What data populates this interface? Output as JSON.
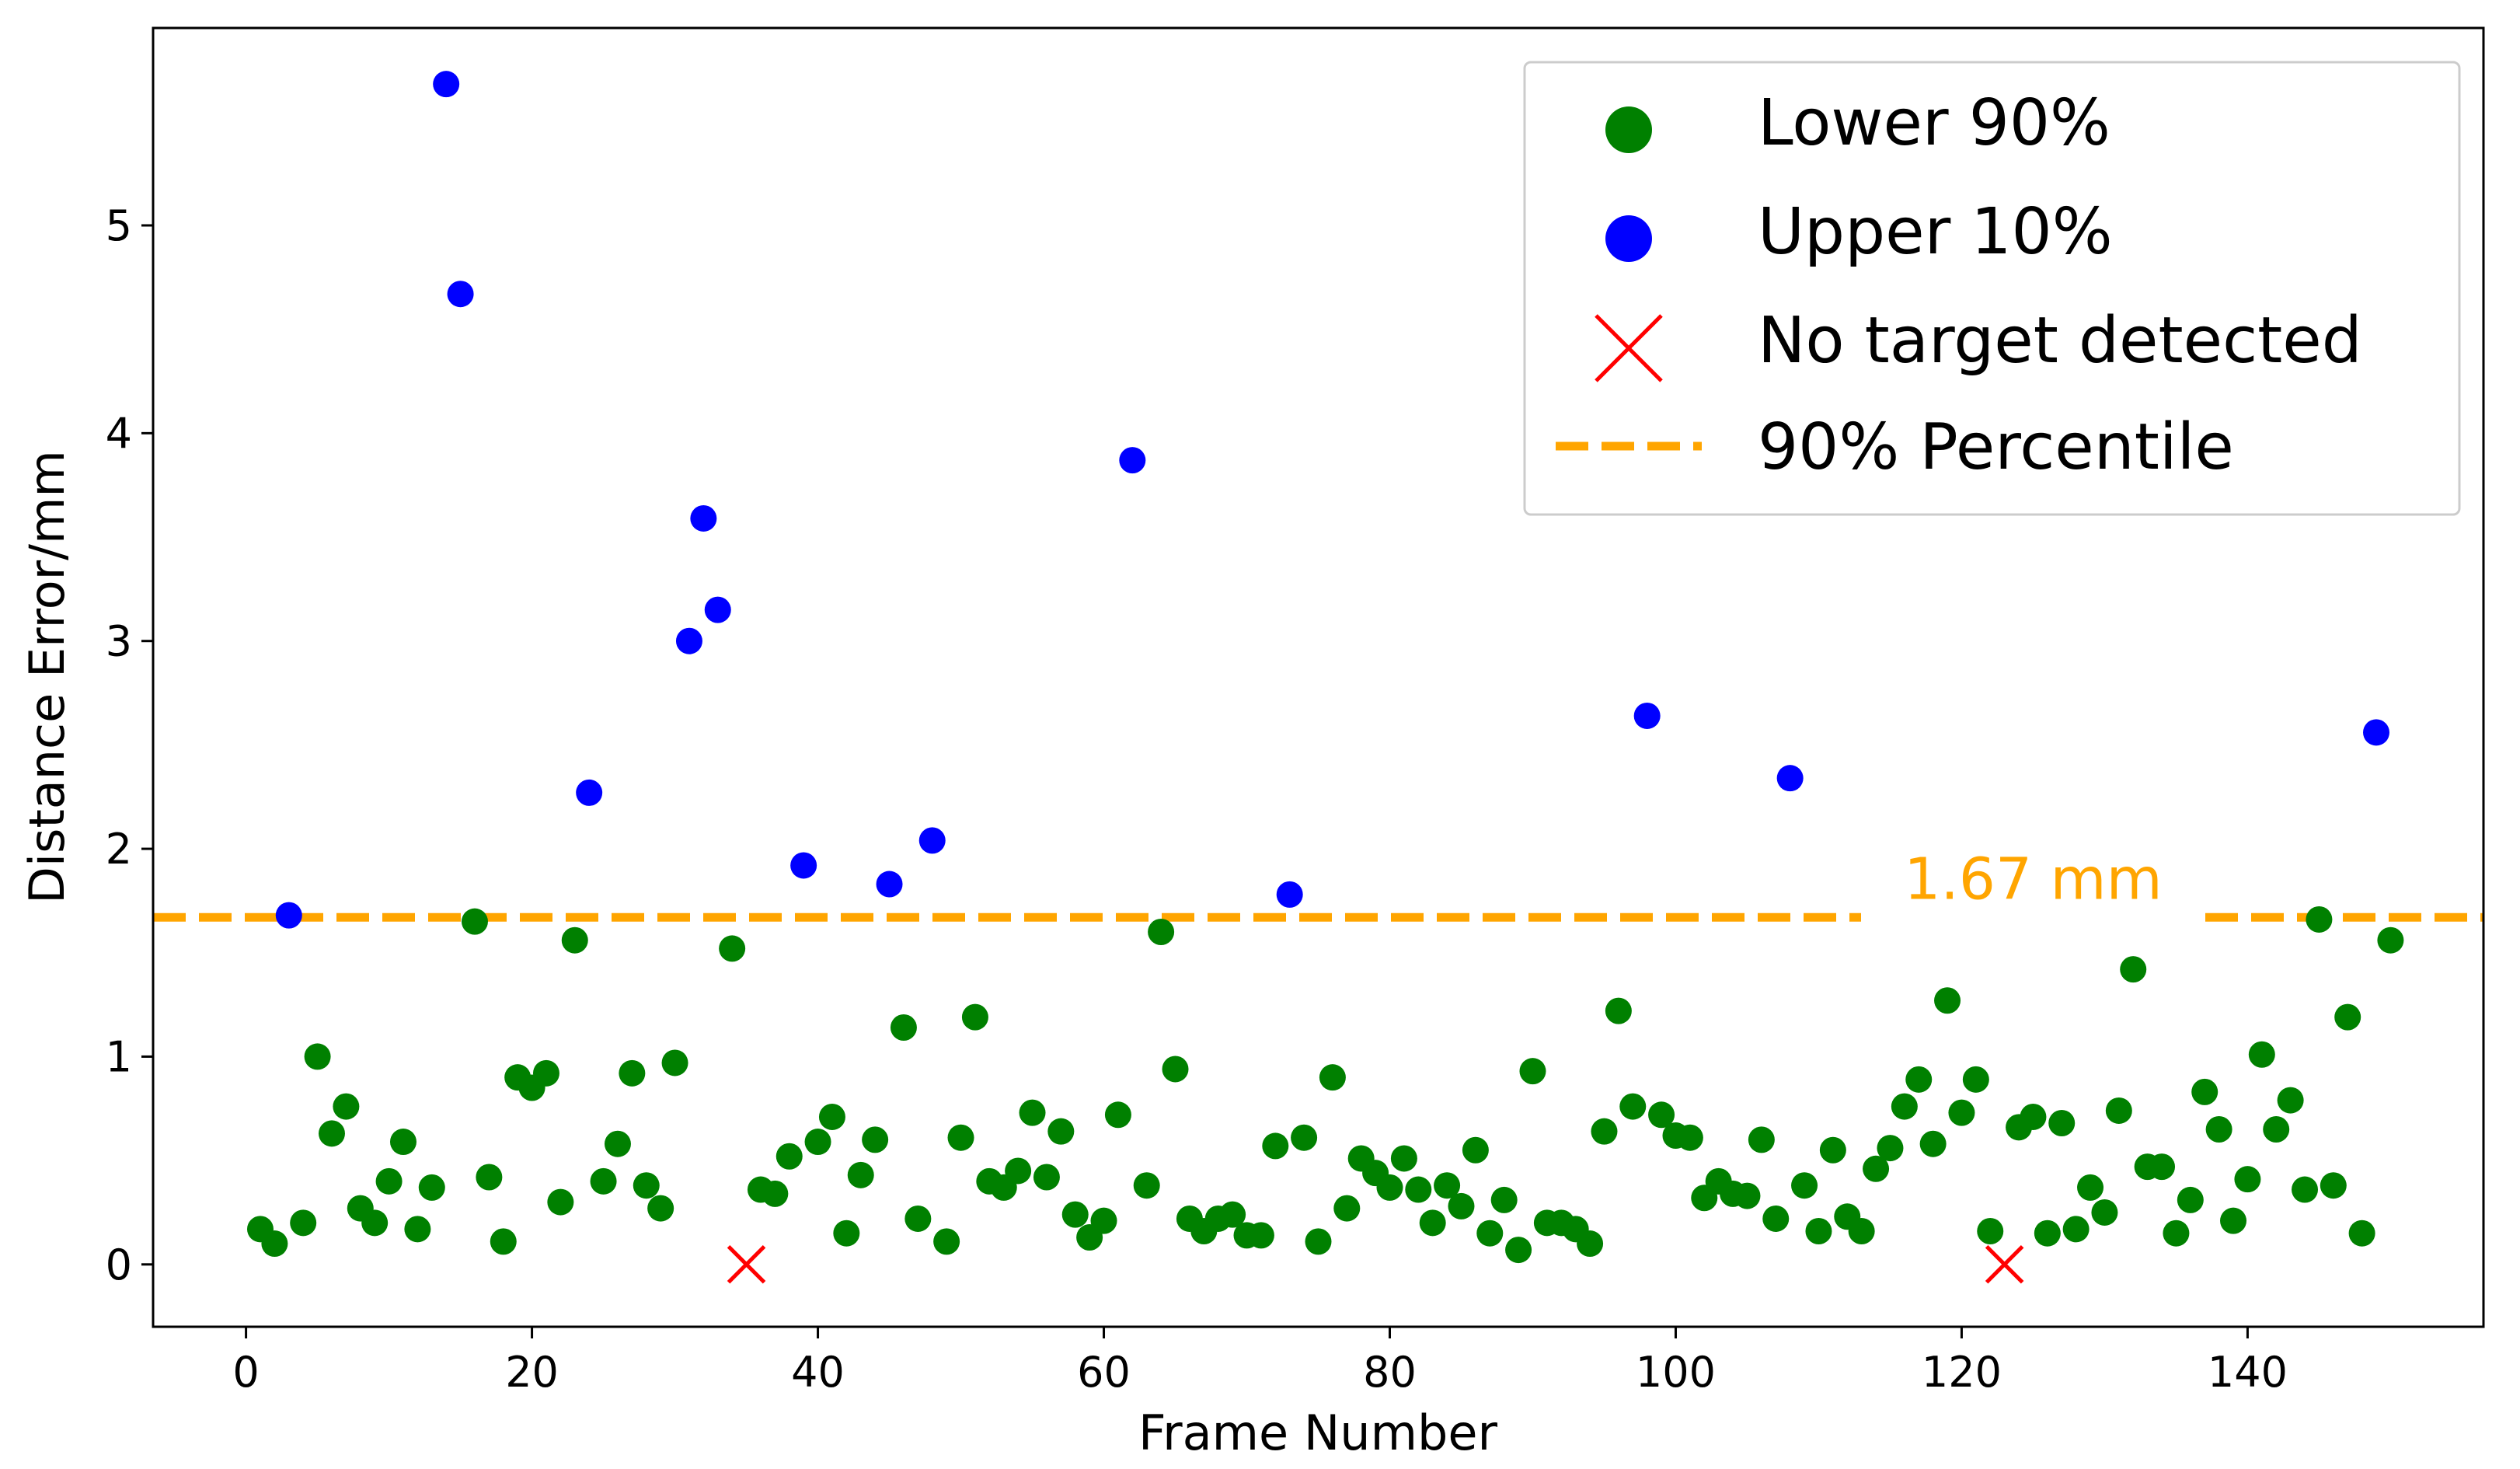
{
  "chart_data": {
    "type": "scatter",
    "title": "",
    "xlabel": "Frame Number",
    "ylabel": "Distance Error/mm",
    "xlim": [
      -6.5,
      156.5
    ],
    "ylim": [
      -0.3,
      5.95
    ],
    "xticks": [
      0,
      20,
      40,
      60,
      80,
      100,
      120,
      140
    ],
    "yticks": [
      0,
      1,
      2,
      3,
      4,
      5
    ],
    "grid": false,
    "legend_position": "top-right",
    "colors": {
      "lower": "#008000",
      "upper": "#0000ff",
      "none": "#ff0000",
      "threshold": "#ffa500"
    },
    "threshold": {
      "value": 1.67,
      "label": "1.67 mm",
      "name": "90% Percentile"
    },
    "series": [
      {
        "name": "Lower 90%",
        "marker": "circle",
        "x": [
          1,
          2,
          4,
          5,
          6,
          7,
          8,
          9,
          10,
          11,
          12,
          13,
          16,
          17,
          18,
          19,
          20,
          21,
          22,
          23,
          25,
          26,
          27,
          28,
          29,
          30,
          34,
          36,
          37,
          38,
          40,
          41,
          42,
          43,
          44,
          46,
          47,
          49,
          50,
          51,
          52,
          53,
          54,
          55,
          56,
          57,
          58,
          59,
          60,
          61,
          63,
          64,
          65,
          66,
          67,
          68,
          69,
          70,
          71,
          72,
          74,
          75,
          76,
          77,
          78,
          79,
          80,
          81,
          82,
          83,
          84,
          85,
          86,
          87,
          88,
          89,
          90,
          91,
          92,
          93,
          94,
          95,
          96,
          97,
          99,
          100,
          101,
          102,
          103,
          104,
          105,
          106,
          107,
          109,
          110,
          111,
          112,
          113,
          114,
          115,
          116,
          117,
          118,
          119,
          120,
          121,
          122,
          124,
          125,
          126,
          127,
          128,
          129,
          130,
          131,
          132,
          133,
          134,
          135,
          136,
          137,
          138,
          139,
          140,
          141,
          142,
          143,
          144,
          145,
          146,
          147,
          148,
          150
        ],
        "y": [
          0.17,
          0.1,
          0.2,
          1.0,
          0.63,
          0.76,
          0.27,
          0.2,
          0.4,
          0.59,
          0.17,
          0.37,
          1.65,
          0.42,
          0.11,
          0.9,
          0.85,
          0.92,
          0.3,
          1.56,
          0.4,
          0.58,
          0.92,
          0.38,
          0.27,
          0.97,
          1.52,
          0.36,
          0.34,
          0.52,
          0.59,
          0.71,
          0.15,
          0.43,
          0.6,
          1.14,
          0.22,
          0.11,
          0.61,
          1.19,
          0.4,
          0.37,
          0.45,
          0.73,
          0.42,
          0.64,
          0.24,
          0.13,
          0.21,
          0.72,
          0.38,
          1.6,
          0.94,
          0.22,
          0.16,
          0.22,
          0.24,
          0.14,
          0.14,
          0.57,
          0.61,
          0.11,
          0.9,
          0.27,
          0.51,
          0.44,
          0.37,
          0.51,
          0.36,
          0.2,
          0.38,
          0.28,
          0.55,
          0.15,
          0.31,
          0.07,
          0.93,
          0.2,
          0.2,
          0.17,
          0.1,
          0.64,
          1.22,
          0.76,
          0.72,
          0.62,
          0.61,
          0.32,
          0.4,
          0.34,
          0.33,
          0.6,
          0.22,
          0.38,
          0.16,
          0.55,
          0.23,
          0.16,
          0.46,
          0.56,
          0.76,
          0.89,
          0.58,
          1.27,
          0.73,
          0.89,
          0.16,
          0.66,
          0.71,
          0.15,
          0.68,
          0.17,
          0.37,
          0.25,
          0.74,
          1.42,
          0.47,
          0.47,
          0.15,
          0.31,
          0.83,
          0.65,
          0.21,
          0.41,
          1.01,
          0.65,
          0.79,
          0.36,
          1.66,
          0.38,
          1.19,
          0.15,
          1.56
        ]
      },
      {
        "name": "Upper 10%",
        "marker": "circle",
        "x": [
          3,
          14,
          15,
          24,
          31,
          32,
          33,
          39,
          45,
          48,
          62,
          73,
          98,
          108,
          149
        ],
        "y": [
          1.68,
          5.68,
          4.67,
          2.27,
          3.0,
          3.59,
          3.15,
          1.92,
          1.83,
          2.04,
          3.87,
          1.78,
          2.64,
          2.34,
          2.56
        ]
      },
      {
        "name": "No target detected",
        "marker": "x",
        "x": [
          35,
          123
        ],
        "y": [
          0,
          0
        ]
      }
    ]
  }
}
